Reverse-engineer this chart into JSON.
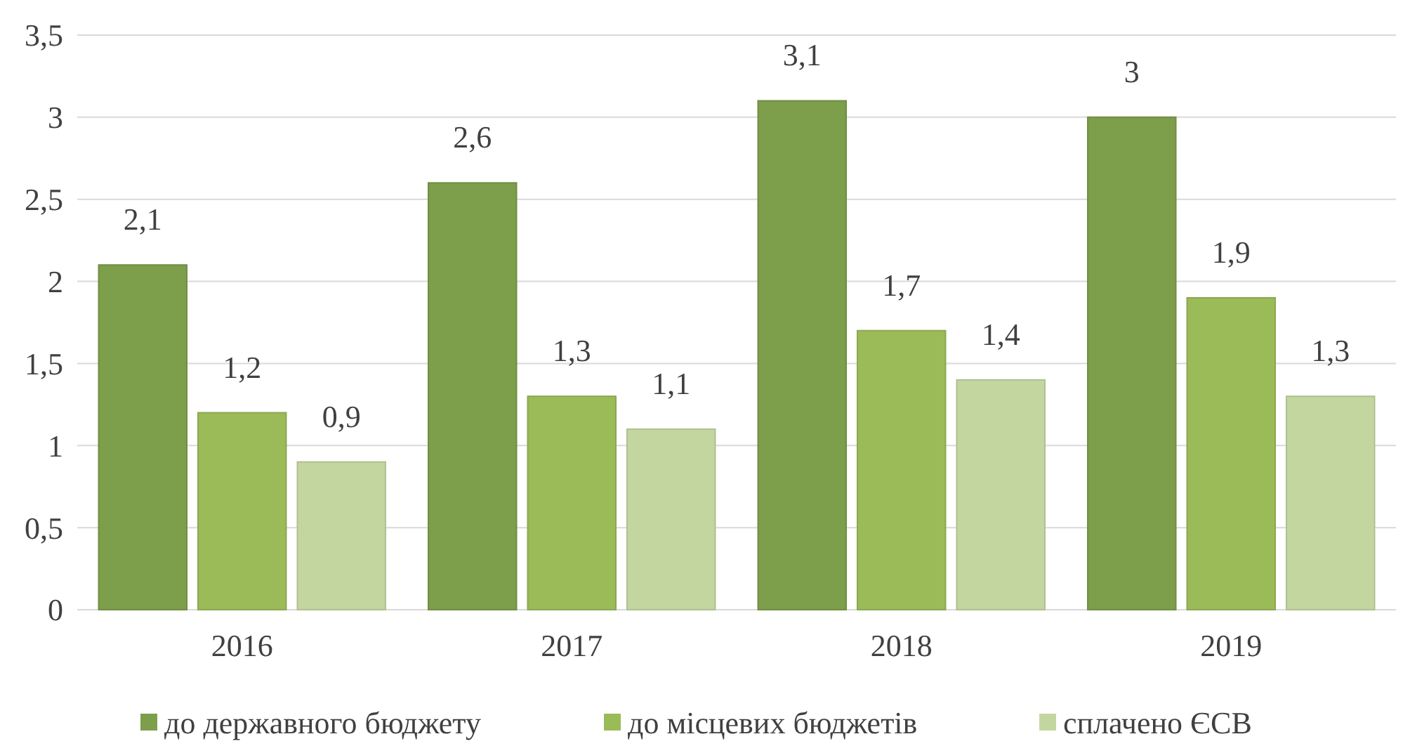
{
  "chart_data": {
    "type": "bar",
    "categories": [
      "2016",
      "2017",
      "2018",
      "2019"
    ],
    "series": [
      {
        "name": "до державного бюджету",
        "color": "#7d9e4a",
        "values": [
          2.1,
          2.6,
          3.1,
          3
        ],
        "value_labels": [
          "2,1",
          "2,6",
          "3,1",
          "3"
        ]
      },
      {
        "name": "до місцевих бюджетів",
        "color": "#9bbb59",
        "values": [
          1.2,
          1.3,
          1.7,
          1.9
        ],
        "value_labels": [
          "1,2",
          "1,3",
          "1,7",
          "1,9"
        ]
      },
      {
        "name": "сплачено ЄСВ",
        "color": "#c4d6a0",
        "values": [
          0.9,
          1.1,
          1.4,
          1.3
        ],
        "value_labels": [
          "0,9",
          "1,1",
          "1,4",
          "1,3"
        ]
      }
    ],
    "ylim": [
      0,
      3.5
    ],
    "yticks": [
      0,
      {
        "value": 0.5,
        "label": "0,5"
      },
      1,
      {
        "value": 1.5,
        "label": "1,5"
      },
      2,
      {
        "value": 2.5,
        "label": "2,5"
      },
      3,
      {
        "value": 3.5,
        "label": "3,5"
      }
    ],
    "grid": "y",
    "legend": "bottom"
  }
}
